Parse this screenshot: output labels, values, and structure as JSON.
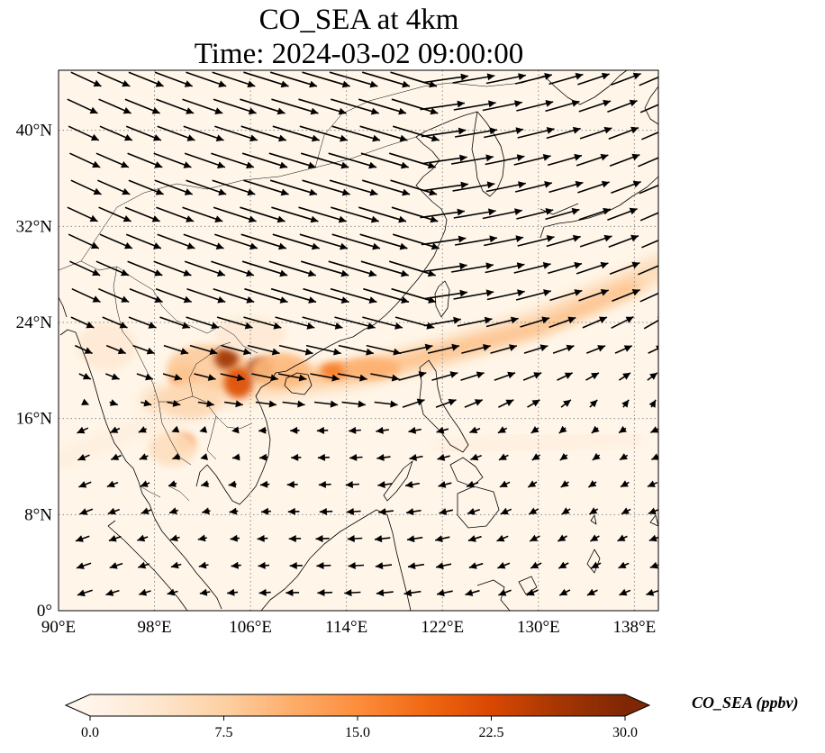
{
  "title": {
    "line1": "CO_SEA at 4km",
    "line2": "Time: 2024-03-02 09:00:00"
  },
  "map": {
    "lon_range": [
      90,
      140
    ],
    "lat_range": [
      0,
      45
    ],
    "lon_ticks": [
      {
        "value": 90,
        "label": "90°E"
      },
      {
        "value": 98,
        "label": "98°E"
      },
      {
        "value": 106,
        "label": "106°E"
      },
      {
        "value": 114,
        "label": "114°E"
      },
      {
        "value": 122,
        "label": "122°E"
      },
      {
        "value": 130,
        "label": "130°E"
      },
      {
        "value": 138,
        "label": "138°E"
      }
    ],
    "lat_ticks": [
      {
        "value": 0,
        "label": "0°"
      },
      {
        "value": 8,
        "label": "8°N"
      },
      {
        "value": 16,
        "label": "16°N"
      },
      {
        "value": 24,
        "label": "24°N"
      },
      {
        "value": 32,
        "label": "32°N"
      },
      {
        "value": 40,
        "label": "40°N"
      }
    ],
    "gridlines": true,
    "colors": {
      "background": "#fff6e9",
      "coastline": "#000000",
      "grid": "#8a8a8a",
      "wind_arrow": "#000000"
    },
    "plumes": [
      {
        "type": "band",
        "points": [
          [
            98,
            17.5
          ],
          [
            106,
            18.5
          ],
          [
            114,
            19.5
          ],
          [
            122,
            21.5
          ],
          [
            130,
            24
          ],
          [
            138,
            27.5
          ],
          [
            140,
            28.5
          ]
        ],
        "width": 2.2,
        "level": 6
      },
      {
        "type": "band",
        "points": [
          [
            110,
            19.5
          ],
          [
            116,
            20
          ],
          [
            122,
            21.5
          ],
          [
            130,
            23.5
          ],
          [
            138,
            27
          ]
        ],
        "width": 1.0,
        "level": 10
      },
      {
        "type": "band",
        "points": [
          [
            90,
            12.5
          ],
          [
            96,
            15
          ],
          [
            102,
            16.5
          ]
        ],
        "width": 1.5,
        "level": 2
      },
      {
        "type": "band",
        "points": [
          [
            122,
            13.5
          ],
          [
            130,
            14
          ],
          [
            138,
            14.5
          ]
        ],
        "width": 1.8,
        "level": 1.5
      },
      {
        "type": "blob",
        "lon": 100.5,
        "lat": 19.5,
        "rlon": 1.2,
        "rlat": 0.9,
        "level": 16
      },
      {
        "type": "blob",
        "lon": 102.5,
        "lat": 20.2,
        "rlon": 3.5,
        "rlat": 2.0,
        "level": 8
      },
      {
        "type": "blob",
        "lon": 104.0,
        "lat": 21.0,
        "rlon": 1.0,
        "rlat": 0.9,
        "level": 27
      },
      {
        "type": "blob",
        "lon": 105.0,
        "lat": 19.0,
        "rlon": 1.2,
        "rlat": 1.3,
        "level": 22
      },
      {
        "type": "blob",
        "lon": 106.8,
        "lat": 20.2,
        "rlon": 1.1,
        "rlat": 0.9,
        "level": 26
      },
      {
        "type": "blob",
        "lon": 108.5,
        "lat": 20.0,
        "rlon": 2.5,
        "rlat": 1.5,
        "level": 10
      },
      {
        "type": "blob",
        "lon": 113.0,
        "lat": 20.0,
        "rlon": 1.2,
        "rlat": 0.7,
        "level": 17
      },
      {
        "type": "blob",
        "lon": 116.0,
        "lat": 20.2,
        "rlon": 2.5,
        "rlat": 0.9,
        "level": 11
      },
      {
        "type": "blob",
        "lon": 100.5,
        "lat": 14.0,
        "rlon": 0.8,
        "rlat": 0.7,
        "level": 18
      },
      {
        "type": "blob",
        "lon": 99.5,
        "lat": 13.5,
        "rlon": 2.0,
        "rlat": 1.5,
        "level": 5
      },
      {
        "type": "blob",
        "lon": 101.0,
        "lat": 17.5,
        "rlon": 2.5,
        "rlat": 1.5,
        "level": 6
      },
      {
        "type": "blob",
        "lon": 94.0,
        "lat": 22.0,
        "rlon": 2.5,
        "rlat": 2.0,
        "level": 3
      },
      {
        "type": "blob",
        "lon": 106.0,
        "lat": 23.0,
        "rlon": 3.0,
        "rlat": 1.5,
        "level": 3
      }
    ]
  },
  "colorbar": {
    "label": "CO_SEA (ppbv)",
    "min": 0.0,
    "max": 30.0,
    "ticks": [
      {
        "value": 0.0,
        "label": "0.0"
      },
      {
        "value": 7.5,
        "label": "7.5"
      },
      {
        "value": 15.0,
        "label": "15.0"
      },
      {
        "value": 22.5,
        "label": "22.5"
      },
      {
        "value": 30.0,
        "label": "30.0"
      }
    ],
    "colormap": [
      "#fff5eb",
      "#fee6ce",
      "#fdd0a2",
      "#fdae6b",
      "#fd8d3c",
      "#f16913",
      "#d94801",
      "#a63603",
      "#7f2704"
    ],
    "extend": "both"
  }
}
